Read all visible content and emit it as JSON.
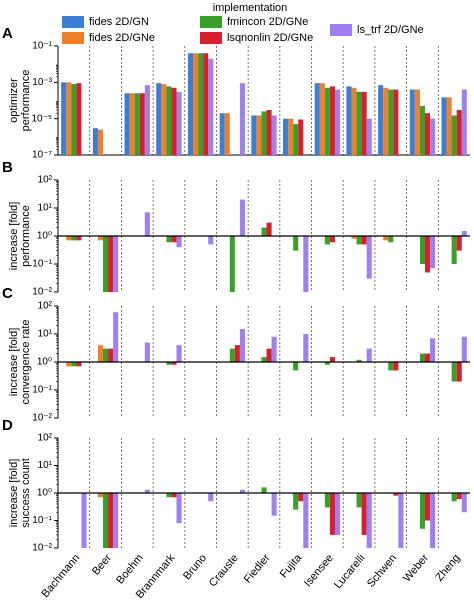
{
  "chart_data": [
    {
      "type": "bar",
      "panel_label": "A",
      "legend_title": "implementation",
      "y_label": [
        "optimizer",
        "performance"
      ],
      "log_y": true,
      "ylim": [
        1e-07,
        0.1
      ],
      "yticks": [
        {
          "value": 1e-07,
          "label": "10⁻⁷"
        },
        {
          "value": 1e-05,
          "label": "10⁻⁵"
        },
        {
          "value": 0.001,
          "label": "10⁻³"
        },
        {
          "value": 0.1,
          "label": "10⁻¹"
        }
      ],
      "series": [
        {
          "name": "fides 2D/GN",
          "color": "#3a7fd5",
          "values": [
            0.001,
            3e-06,
            0.00025,
            0.0009,
            0.04,
            2e-05,
            1.5e-05,
            1e-05,
            0.0009,
            0.0006,
            0.0007,
            0.0004,
            0.00015
          ]
        },
        {
          "name": "fides 2D/GNe",
          "color": "#f07f2a",
          "values": [
            0.001,
            2.5e-06,
            0.00025,
            0.0008,
            0.04,
            2e-05,
            1.5e-05,
            1e-05,
            0.0009,
            0.0005,
            0.0005,
            0.0004,
            0.00015
          ]
        },
        {
          "name": "fmincon 2D/GNe",
          "color": "#3aa02a",
          "values": [
            0.0008,
            null,
            0.00025,
            0.0006,
            0.04,
            null,
            2.5e-05,
            5e-06,
            0.0005,
            0.0003,
            0.0004,
            5e-05,
            1.5e-05
          ]
        },
        {
          "name": "lsqnonlin 2D/GNe",
          "color": "#d62030",
          "values": [
            0.0009,
            null,
            0.00025,
            0.0005,
            0.04,
            null,
            3e-05,
            9e-06,
            0.0006,
            0.0003,
            0.0004,
            2e-05,
            3e-05
          ]
        },
        {
          "name": "ls_trf 2D/GNe",
          "color": "#a07ff0",
          "values": [
            null,
            null,
            0.0007,
            0.0003,
            0.02,
            0.0009,
            1.5e-05,
            null,
            0.0004,
            1e-05,
            null,
            1e-05,
            0.0004
          ]
        }
      ]
    },
    {
      "type": "bar",
      "panel_label": "B",
      "y_label": [
        "increase [fold]",
        "performance"
      ],
      "log_y": true,
      "ylim": [
        0.01,
        100
      ],
      "yticks": [
        {
          "value": 0.01,
          "label": "10⁻²"
        },
        {
          "value": 0.1,
          "label": "10⁻¹"
        },
        {
          "value": 1,
          "label": "10⁰"
        },
        {
          "value": 10,
          "label": "10¹"
        },
        {
          "value": 100,
          "label": "10²"
        }
      ],
      "series": [
        {
          "values": [
            null,
            null,
            null,
            null,
            null,
            null,
            null,
            null,
            null,
            null,
            null,
            null,
            null
          ]
        },
        {
          "values": [
            0.7,
            0.7,
            1,
            1,
            null,
            1,
            1,
            1,
            1,
            0.8,
            0.7,
            1,
            1
          ]
        },
        {
          "values": [
            0.7,
            0.01,
            1,
            0.6,
            null,
            0.01,
            2,
            0.3,
            0.5,
            0.5,
            0.6,
            0.1,
            0.1
          ]
        },
        {
          "values": [
            0.7,
            0.01,
            1,
            0.6,
            null,
            null,
            3,
            1,
            0.6,
            0.5,
            1,
            0.05,
            0.3
          ]
        },
        {
          "values": [
            null,
            0.01,
            7,
            0.4,
            0.5,
            20,
            1,
            0.01,
            null,
            0.03,
            null,
            0.07,
            1.5
          ]
        }
      ]
    },
    {
      "type": "bar",
      "panel_label": "C",
      "y_label": [
        "increase [fold]",
        "convergence rate"
      ],
      "log_y": true,
      "ylim": [
        0.01,
        100
      ],
      "yticks": [
        {
          "value": 0.01,
          "label": "10⁻²"
        },
        {
          "value": 0.1,
          "label": "10⁻¹"
        },
        {
          "value": 1,
          "label": "10⁰"
        },
        {
          "value": 10,
          "label": "10¹"
        },
        {
          "value": 100,
          "label": "10²"
        }
      ],
      "series": [
        {
          "values": [
            null,
            null,
            null,
            null,
            null,
            null,
            null,
            null,
            null,
            null,
            null,
            null,
            null
          ]
        },
        {
          "values": [
            0.7,
            4,
            1,
            1,
            null,
            1,
            1,
            1,
            1,
            1,
            1,
            1,
            1
          ]
        },
        {
          "values": [
            0.7,
            3,
            1,
            0.8,
            null,
            3,
            1.5,
            0.5,
            0.8,
            1.2,
            0.5,
            2,
            0.2
          ]
        },
        {
          "values": [
            0.7,
            3,
            1,
            0.8,
            null,
            4,
            3,
            1,
            1.5,
            1,
            0.5,
            2,
            0.2
          ]
        },
        {
          "values": [
            null,
            60,
            5,
            4,
            null,
            15,
            8,
            10,
            null,
            3,
            null,
            7,
            8
          ]
        }
      ]
    },
    {
      "type": "bar",
      "panel_label": "D",
      "y_label": [
        "increase [fold]",
        "success count"
      ],
      "log_y": true,
      "categories": [
        "Bachmann",
        "Beer",
        "Boehm",
        "Brannmark",
        "Bruno",
        "Crauste",
        "Fiedler",
        "Fujita",
        "Isensee",
        "Lucarelli",
        "Schwen",
        "Weber",
        "Zheng"
      ],
      "ylim": [
        0.01,
        100
      ],
      "yticks": [
        {
          "value": 0.01,
          "label": "10⁻²"
        },
        {
          "value": 0.1,
          "label": "10⁻¹"
        },
        {
          "value": 1,
          "label": "10⁰"
        },
        {
          "value": 10,
          "label": "10¹"
        },
        {
          "value": 100,
          "label": "10²"
        }
      ],
      "series": [
        {
          "values": [
            null,
            null,
            null,
            null,
            null,
            null,
            null,
            null,
            null,
            null,
            null,
            null,
            null
          ]
        },
        {
          "values": [
            1,
            0.7,
            1,
            1,
            null,
            1,
            1,
            1,
            1,
            1,
            1,
            1,
            1
          ]
        },
        {
          "values": [
            1,
            0.01,
            1,
            0.7,
            null,
            1,
            1.6,
            0.25,
            0.3,
            0.3,
            1,
            0.05,
            0.5
          ]
        },
        {
          "values": [
            1,
            0.01,
            1,
            0.7,
            null,
            1,
            1,
            0.5,
            0.03,
            0.03,
            0.8,
            0.1,
            0.6
          ]
        },
        {
          "values": [
            0.01,
            0.01,
            1.3,
            0.08,
            0.5,
            1.3,
            0.15,
            0.01,
            0.03,
            0.01,
            0.01,
            0.01,
            0.2
          ]
        }
      ]
    }
  ]
}
